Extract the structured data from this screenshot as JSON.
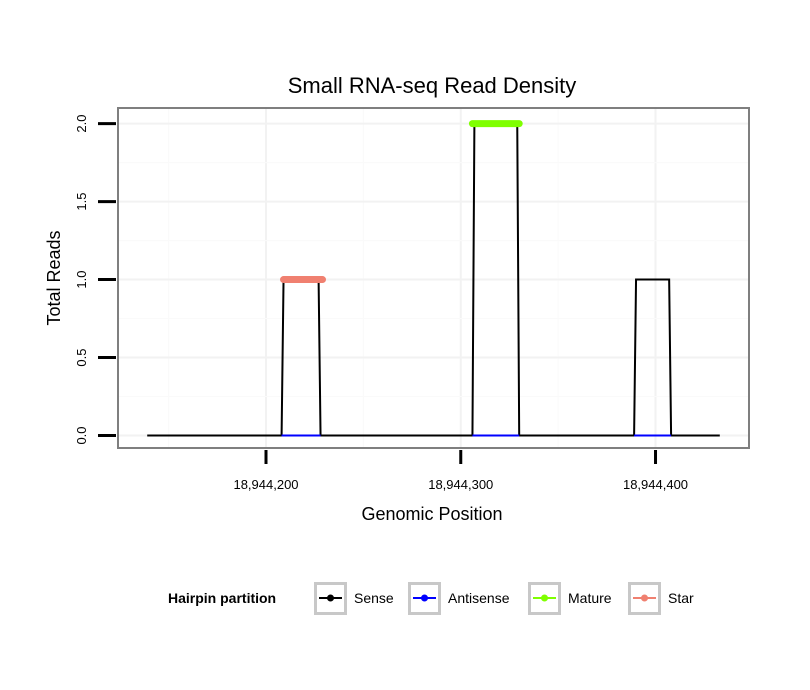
{
  "chart_data": {
    "type": "line",
    "title": "Small RNA-seq Read Density",
    "xlabel": "Genomic Position",
    "ylabel": "Total Reads",
    "xlim": [
      18944124,
      18944448
    ],
    "ylim": [
      -0.08,
      2.1
    ],
    "x_ticks": [
      {
        "value": 18944200,
        "label": "18,944,200"
      },
      {
        "value": 18944300,
        "label": "18,944,300"
      },
      {
        "value": 18944400,
        "label": "18,944,400"
      }
    ],
    "y_ticks": [
      {
        "value": 0.0,
        "label": "0.0"
      },
      {
        "value": 0.5,
        "label": "0.5"
      },
      {
        "value": 1.0,
        "label": "1.0"
      },
      {
        "value": 1.5,
        "label": "1.5"
      },
      {
        "value": 2.0,
        "label": "2.0"
      }
    ],
    "grid": true,
    "legend_title": "Hairpin partition",
    "legend_position": "bottom",
    "series": [
      {
        "name": "Sense",
        "color": "#000000",
        "x": [
          18944139,
          18944208,
          18944209,
          18944227,
          18944228,
          18944306,
          18944307,
          18944329,
          18944330,
          18944389,
          18944390,
          18944407,
          18944408,
          18944433
        ],
        "y": [
          0,
          0,
          1,
          1,
          0,
          0,
          2,
          2,
          0,
          0,
          1,
          1,
          0,
          0
        ]
      },
      {
        "name": "Antisense",
        "color": "#0000ff",
        "x": [
          18944208,
          18944228,
          18944306,
          18944330,
          18944389,
          18944408
        ],
        "y": [
          0,
          0,
          0,
          0,
          0,
          0
        ],
        "segments": [
          [
            0,
            1
          ],
          [
            2,
            3
          ],
          [
            4,
            5
          ]
        ]
      },
      {
        "name": "Mature",
        "color": "#7fff00",
        "x": [
          18944306,
          18944330
        ],
        "y": [
          2,
          2
        ]
      },
      {
        "name": "Star",
        "color": "#f08070",
        "x": [
          18944209,
          18944229
        ],
        "y": [
          1,
          1
        ]
      }
    ]
  }
}
